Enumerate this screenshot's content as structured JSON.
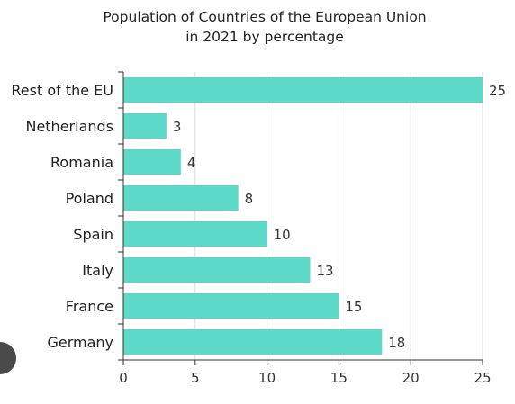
{
  "chart_data": {
    "type": "bar",
    "orientation": "horizontal",
    "title": [
      "Population of Countries of the European Union",
      "in 2021 by percentage"
    ],
    "xlabel": "",
    "ylabel": "",
    "categories": [
      "Rest of the EU",
      "Netherlands",
      "Romania",
      "Poland",
      "Spain",
      "Italy",
      "France",
      "Germany"
    ],
    "values": [
      25,
      3,
      4,
      8,
      10,
      13,
      15,
      18
    ],
    "xlim": [
      0,
      25
    ],
    "xticks": [
      0,
      5,
      10,
      15,
      20,
      25
    ],
    "grid": true,
    "bar_color": "#5dd9c8",
    "data_labels": true
  },
  "colors": {
    "bar": "#5dd9c8",
    "grid": "#d9d9e6",
    "axis": "#333333",
    "text": "#222222"
  }
}
